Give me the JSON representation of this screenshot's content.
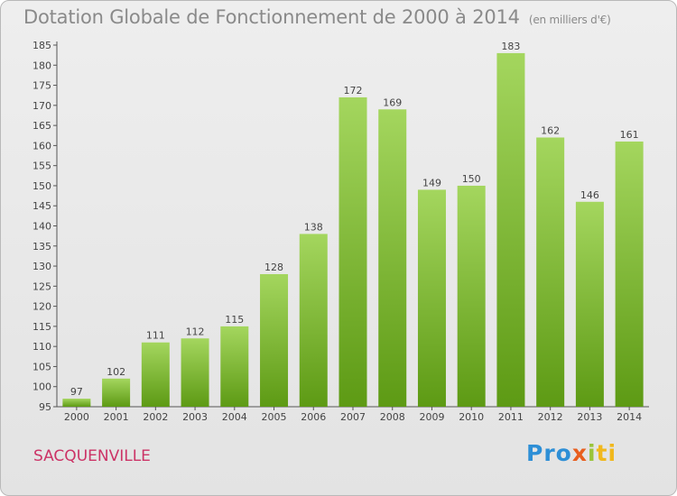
{
  "header": {
    "title": "Dotation Globale de Fonctionnement de 2000 à 2014",
    "subtitle": "(en milliers d'€)"
  },
  "commune": "SACQUENVILLE",
  "logo": {
    "p1": "Pro",
    "p2": "x",
    "p3": "i",
    "p4": "ti"
  },
  "colors": {
    "bar_top": "#a4d65e",
    "bar_bottom": "#5d9a14",
    "title": "#8a8a8a",
    "commune": "#cc3366"
  },
  "chart_data": {
    "type": "bar",
    "title": "Dotation Globale de Fonctionnement de 2000 à 2014",
    "subtitle": "(en milliers d'€)",
    "xlabel": "",
    "ylabel": "",
    "categories": [
      "2000",
      "2001",
      "2002",
      "2003",
      "2004",
      "2005",
      "2006",
      "2007",
      "2008",
      "2009",
      "2010",
      "2011",
      "2012",
      "2013",
      "2014"
    ],
    "values": [
      97,
      102,
      111,
      112,
      115,
      128,
      138,
      172,
      169,
      149,
      150,
      183,
      162,
      146,
      161
    ],
    "ylim": [
      95,
      185
    ],
    "yticks": [
      95,
      100,
      105,
      110,
      115,
      120,
      125,
      130,
      135,
      140,
      145,
      150,
      155,
      160,
      165,
      170,
      175,
      180,
      185
    ],
    "grid": false,
    "legend": "none"
  }
}
